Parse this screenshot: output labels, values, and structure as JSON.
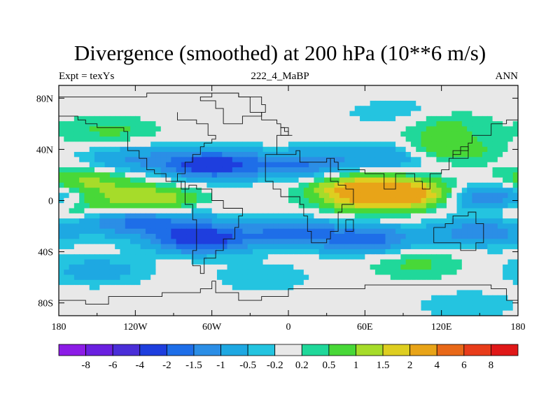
{
  "title": "Divergence (smoothed) at 200 hPa (10**6 m/s)",
  "subtitle_left": "Expt = texYs",
  "subtitle_center": "222_4_MaBP",
  "subtitle_right": "ANN",
  "chart_data": {
    "type": "heatmap",
    "title": "Divergence (smoothed) at 200 hPa (10**6 m/s)",
    "x_tick_labels": [
      "180",
      "120W",
      "60W",
      "0",
      "60E",
      "120E",
      "180"
    ],
    "x_tick_values": [
      -180,
      -120,
      -60,
      0,
      60,
      120,
      180
    ],
    "y_tick_labels": [
      "80N",
      "40N",
      "0",
      "40S",
      "80S"
    ],
    "y_tick_values": [
      80,
      40,
      0,
      -40,
      -80
    ],
    "xlim": [
      -180,
      180
    ],
    "ylim": [
      -90,
      90
    ],
    "colorbar": {
      "labels": [
        "-8",
        "-6",
        "-4",
        "-2",
        "-1.5",
        "-1",
        "-0.5",
        "-0.2",
        "0.2",
        "0.5",
        "1",
        "1.5",
        "2",
        "4",
        "6",
        "8"
      ],
      "levels": [
        -8,
        -6,
        -4,
        -2,
        -1.5,
        -1,
        -0.5,
        -0.2,
        0.2,
        0.5,
        1,
        1.5,
        2,
        4,
        6,
        8
      ],
      "colors": [
        "#8c1ce6",
        "#6a20e0",
        "#4a2ed8",
        "#1e3ede",
        "#1e6ee8",
        "#2b8ee6",
        "#1ea8e2",
        "#24c4e0",
        "#e8e8e8",
        "#20d89a",
        "#48d838",
        "#a6dc2a",
        "#dece20",
        "#e8a418",
        "#e86818",
        "#e83c1a",
        "#e01818"
      ]
    },
    "field_features": [
      {
        "lon": -60,
        "lat": 28,
        "value": -2.5
      },
      {
        "lon": 10,
        "lat": 28,
        "value": -1.5
      },
      {
        "lon": 80,
        "lat": 35,
        "value": -1.2
      },
      {
        "lon": -125,
        "lat": 32,
        "value": -1.0
      },
      {
        "lon": -160,
        "lat": 15,
        "value": 1.2
      },
      {
        "lon": 95,
        "lat": 5,
        "value": 2.2
      },
      {
        "lon": 55,
        "lat": 10,
        "value": 1.8
      },
      {
        "lon": -110,
        "lat": 0,
        "value": 1.6
      },
      {
        "lon": -175,
        "lat": -5,
        "value": 1.0
      },
      {
        "lon": 160,
        "lat": 2,
        "value": -2.0
      },
      {
        "lon": -130,
        "lat": -16,
        "value": -1.4
      },
      {
        "lon": -70,
        "lat": -30,
        "value": -2.5
      },
      {
        "lon": 0,
        "lat": -25,
        "value": -1.5
      },
      {
        "lon": 60,
        "lat": -30,
        "value": -1.8
      },
      {
        "lon": 150,
        "lat": -25,
        "value": -1.4
      },
      {
        "lon": -90,
        "lat": -15,
        "value": -0.8
      },
      {
        "lon": -140,
        "lat": 55,
        "value": 0.6
      },
      {
        "lon": 120,
        "lat": 60,
        "value": 0.6
      },
      {
        "lon": 120,
        "lat": 40,
        "value": 1.2
      },
      {
        "lon": 85,
        "lat": 68,
        "value": -0.5
      },
      {
        "lon": -150,
        "lat": -55,
        "value": -0.8
      },
      {
        "lon": -20,
        "lat": -60,
        "value": -0.5
      },
      {
        "lon": 100,
        "lat": -50,
        "value": 0.6
      },
      {
        "lon": 140,
        "lat": -82,
        "value": -0.5
      },
      {
        "lon": 60,
        "lat": 0,
        "value": 1.0
      }
    ]
  }
}
